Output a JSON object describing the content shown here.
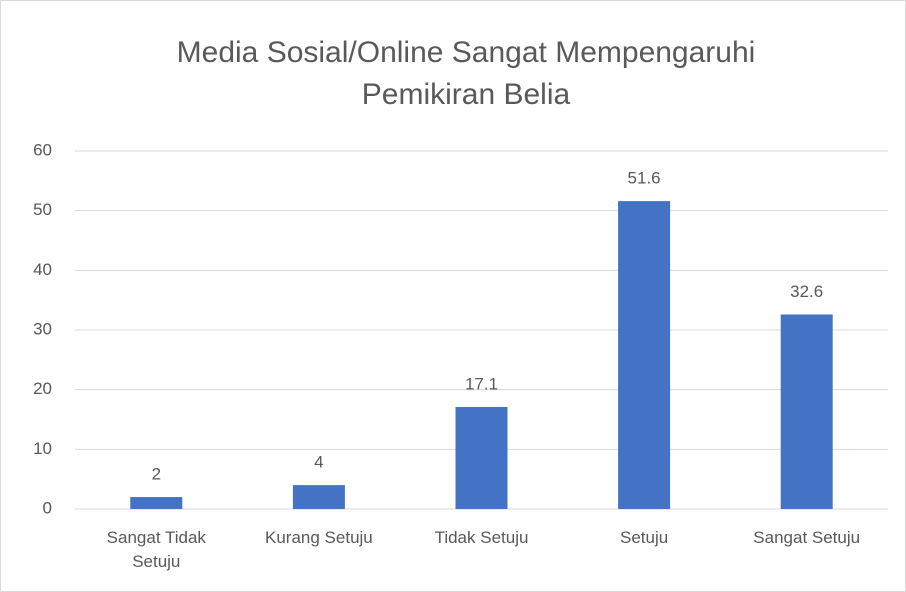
{
  "chart_data": {
    "type": "bar",
    "title": "Media Sosial/Online Sangat Mempengaruhi Pemikiran Belia",
    "categories": [
      "Sangat Tidak Setuju",
      "Kurang Setuju",
      "Tidak Setuju",
      "Setuju",
      "Sangat Setuju"
    ],
    "values": [
      2,
      4,
      17.1,
      51.6,
      32.6
    ],
    "color": "#4472c4",
    "ylim": [
      0,
      60
    ],
    "yticks": [
      0,
      10,
      20,
      30,
      40,
      50,
      60
    ],
    "grid": true
  }
}
